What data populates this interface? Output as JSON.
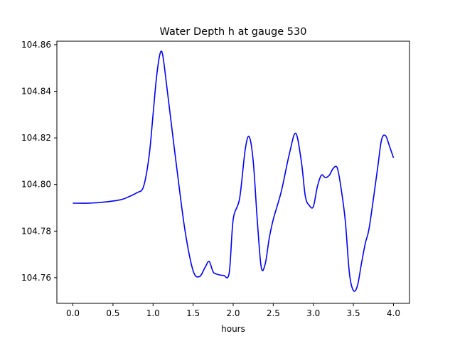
{
  "chart_data": {
    "type": "line",
    "title": "Water Depth h at gauge 530",
    "xlabel": "hours",
    "ylabel": "",
    "xlim": [
      -0.2,
      4.2
    ],
    "ylim": [
      104.749,
      104.8615
    ],
    "xticks": [
      0.0,
      0.5,
      1.0,
      1.5,
      2.0,
      2.5,
      3.0,
      3.5,
      4.0
    ],
    "xtick_labels": [
      "0.0",
      "0.5",
      "1.0",
      "1.5",
      "2.0",
      "2.5",
      "3.0",
      "3.5",
      "4.0"
    ],
    "yticks": [
      104.76,
      104.78,
      104.8,
      104.82,
      104.84,
      104.86
    ],
    "ytick_labels": [
      "104.76",
      "104.78",
      "104.80",
      "104.82",
      "104.84",
      "104.86"
    ],
    "grid": false,
    "series": [
      {
        "color": "#0000ff",
        "x": [
          0.0,
          0.2,
          0.4,
          0.6,
          0.7,
          0.8,
          0.88,
          0.95,
          1.0,
          1.04,
          1.08,
          1.11,
          1.14,
          1.2,
          1.3,
          1.4,
          1.5,
          1.58,
          1.65,
          1.7,
          1.75,
          1.8,
          1.88,
          1.95,
          2.0,
          2.08,
          2.15,
          2.2,
          2.25,
          2.3,
          2.35,
          2.4,
          2.45,
          2.5,
          2.6,
          2.7,
          2.78,
          2.85,
          2.9,
          2.95,
          3.0,
          3.05,
          3.1,
          3.15,
          3.2,
          3.25,
          3.3,
          3.35,
          3.4,
          3.45,
          3.5,
          3.55,
          3.6,
          3.65,
          3.7,
          3.8,
          3.85,
          3.9,
          3.95,
          4.0
        ],
        "y": [
          104.792,
          104.792,
          104.7925,
          104.7935,
          104.7948,
          104.7965,
          104.799,
          104.812,
          104.83,
          104.845,
          104.855,
          104.857,
          104.851,
          104.834,
          104.806,
          104.78,
          104.763,
          104.7605,
          104.7645,
          104.767,
          104.7625,
          104.7615,
          104.761,
          104.762,
          104.785,
          104.794,
          104.815,
          104.8205,
          104.81,
          104.785,
          104.7645,
          104.766,
          104.777,
          104.785,
          104.797,
          104.813,
          104.822,
          104.81,
          104.795,
          104.791,
          104.7905,
          104.799,
          104.804,
          104.803,
          104.804,
          104.807,
          104.807,
          104.7975,
          104.784,
          104.762,
          104.7545,
          104.7565,
          104.766,
          104.775,
          104.782,
          104.8065,
          104.819,
          104.821,
          104.8165,
          104.8115
        ]
      }
    ]
  }
}
